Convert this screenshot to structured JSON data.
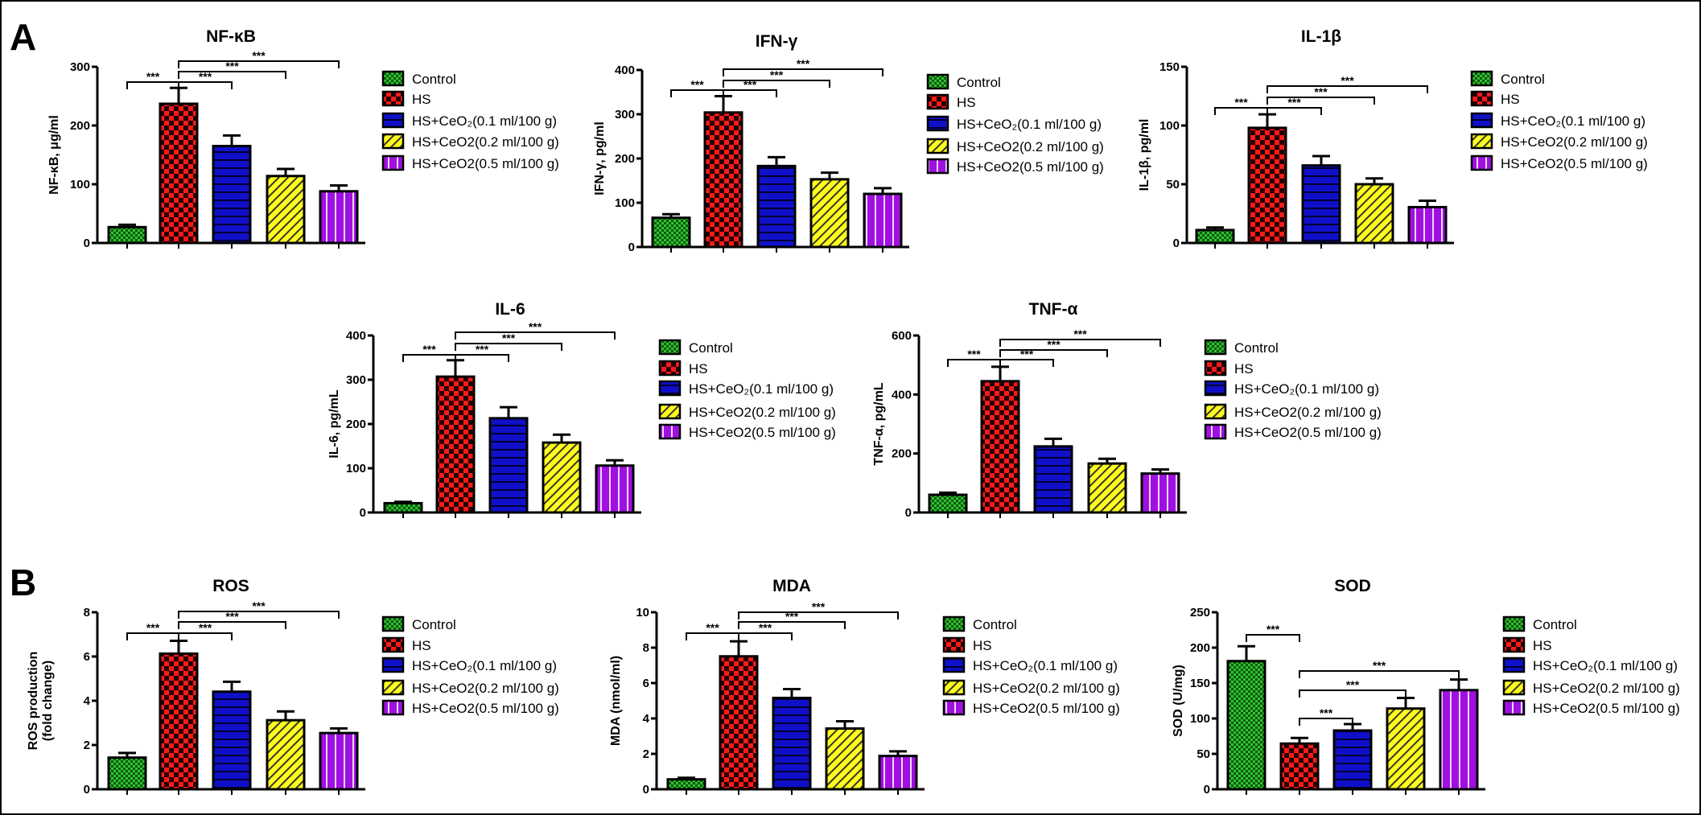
{
  "panels": {
    "a": "A",
    "b": "B"
  },
  "groups": [
    "Control",
    "HS",
    "HS+CeO₂(0.1 ml/100 g)",
    "HS+CeO2(0.2 ml/100 g)",
    "HS+CeO2(0.5 ml/100 g)"
  ],
  "group_colors": [
    "#1fa01f",
    "#ff1a1a",
    "#1010c8",
    "#ffff1a",
    "#a010e0"
  ],
  "group_patterns": [
    "checker-small",
    "checker-large",
    "horizontal-lines",
    "diagonal-lines",
    "vertical-lines"
  ],
  "chart_data": [
    {
      "type": "bar",
      "title": "NF-κB",
      "ylabel": "NF-κB, μg/ml",
      "ylim": [
        0,
        300
      ],
      "yticks": [
        "0",
        "100",
        "200",
        "300"
      ],
      "categories": [
        "Control",
        "HS",
        "HS+CeO₂(0.1 ml/100 g)",
        "HS+CeO2(0.2 ml/100 g)",
        "HS+CeO2(0.5 ml/100 g)"
      ],
      "values": [
        27,
        237,
        165,
        114,
        88
      ],
      "errors": [
        4,
        27,
        18,
        12,
        10
      ],
      "significance": [
        {
          "pair": [
            0,
            1
          ],
          "label": "***"
        },
        {
          "pair": [
            1,
            2
          ],
          "label": "***"
        },
        {
          "pair": [
            1,
            3
          ],
          "label": "***"
        },
        {
          "pair": [
            1,
            4
          ],
          "label": "***"
        }
      ],
      "legend": "right"
    },
    {
      "type": "bar",
      "title": "IFN-γ",
      "ylabel": "IFN-γ, pg/ml",
      "ylim": [
        0,
        400
      ],
      "yticks": [
        "0",
        "100",
        "200",
        "300",
        "400"
      ],
      "categories": [
        "Control",
        "HS",
        "HS+CeO₂(0.1 ml/100 g)",
        "HS+CeO2(0.2 ml/100 g)",
        "HS+CeO2(0.5 ml/100 g)"
      ],
      "values": [
        66,
        304,
        183,
        153,
        120
      ],
      "errors": [
        8,
        37,
        20,
        15,
        13
      ],
      "significance": [
        {
          "pair": [
            0,
            1
          ],
          "label": "***"
        },
        {
          "pair": [
            1,
            2
          ],
          "label": "***"
        },
        {
          "pair": [
            1,
            3
          ],
          "label": "***"
        },
        {
          "pair": [
            1,
            4
          ],
          "label": "***"
        }
      ],
      "legend": "right"
    },
    {
      "type": "bar",
      "title": "IL-1β",
      "ylabel": "IL-1β, pg/ml",
      "ylim": [
        0,
        150
      ],
      "yticks": [
        "0",
        "50",
        "100",
        "150"
      ],
      "categories": [
        "Control",
        "HS",
        "HS+CeO₂(0.1 ml/100 g)",
        "HS+CeO2(0.2 ml/100 g)",
        "HS+CeO2(0.5 ml/100 g)"
      ],
      "values": [
        11,
        98,
        66,
        50,
        30.5
      ],
      "errors": [
        2.2,
        11.5,
        8,
        5,
        5.5
      ],
      "significance": [
        {
          "pair": [
            0,
            1
          ],
          "label": "***"
        },
        {
          "pair": [
            1,
            2
          ],
          "label": "***"
        },
        {
          "pair": [
            1,
            3
          ],
          "label": "***"
        },
        {
          "pair": [
            1,
            4
          ],
          "label": "***"
        }
      ],
      "legend": "right"
    },
    {
      "type": "bar",
      "title": "IL-6",
      "ylabel": "IL-6, pg/mL",
      "ylim": [
        0,
        400
      ],
      "yticks": [
        "0",
        "100",
        "200",
        "300",
        "400"
      ],
      "categories": [
        "Control",
        "HS",
        "HS+CeO₂(0.1 ml/100 g)",
        "HS+CeO2(0.2 ml/100 g)",
        "HS+CeO2(0.5 ml/100 g)"
      ],
      "values": [
        21,
        307,
        213,
        158,
        106
      ],
      "errors": [
        3,
        37,
        25,
        18,
        12
      ],
      "significance": [
        {
          "pair": [
            0,
            1
          ],
          "label": "***"
        },
        {
          "pair": [
            1,
            2
          ],
          "label": "***"
        },
        {
          "pair": [
            1,
            3
          ],
          "label": "***"
        },
        {
          "pair": [
            1,
            4
          ],
          "label": "***"
        }
      ],
      "legend": "right"
    },
    {
      "type": "bar",
      "title": "TNF-α",
      "ylabel": "TNF-α, pg/mL",
      "ylim": [
        0,
        600
      ],
      "yticks": [
        "0",
        "200",
        "400",
        "600"
      ],
      "categories": [
        "Control",
        "HS",
        "HS+CeO₂(0.1 ml/100 g)",
        "HS+CeO2(0.2 ml/100 g)",
        "HS+CeO2(0.5 ml/100 g)"
      ],
      "values": [
        60,
        445,
        224,
        166,
        132
      ],
      "errors": [
        7,
        49,
        26,
        16,
        14
      ],
      "significance": [
        {
          "pair": [
            0,
            1
          ],
          "label": "***"
        },
        {
          "pair": [
            1,
            2
          ],
          "label": "***"
        },
        {
          "pair": [
            1,
            3
          ],
          "label": "***"
        },
        {
          "pair": [
            1,
            4
          ],
          "label": "***"
        }
      ],
      "legend": "right"
    },
    {
      "type": "bar",
      "title": "ROS",
      "ylabel": "ROS production",
      "ylabel2": "(fold change)",
      "ylim": [
        0,
        8
      ],
      "yticks": [
        "0",
        "2",
        "4",
        "6",
        "8"
      ],
      "categories": [
        "Control",
        "HS",
        "HS+CeO₂(0.1 ml/100 g)",
        "HS+CeO2(0.2 ml/100 g)",
        "HS+CeO2(0.5 ml/100 g)"
      ],
      "values": [
        1.43,
        6.13,
        4.41,
        3.12,
        2.54
      ],
      "errors": [
        0.21,
        0.58,
        0.45,
        0.4,
        0.21
      ],
      "significance": [
        {
          "pair": [
            0,
            1
          ],
          "label": "***"
        },
        {
          "pair": [
            1,
            2
          ],
          "label": "***"
        },
        {
          "pair": [
            1,
            3
          ],
          "label": "***"
        },
        {
          "pair": [
            1,
            4
          ],
          "label": "***"
        }
      ],
      "legend": "right"
    },
    {
      "type": "bar",
      "title": "MDA",
      "ylabel": "MDA (nmol/ml)",
      "ylim": [
        0,
        10
      ],
      "yticks": [
        "0",
        "2",
        "4",
        "6",
        "8",
        "10"
      ],
      "categories": [
        "Control",
        "HS",
        "HS+CeO₂(0.1 ml/100 g)",
        "HS+CeO2(0.2 ml/100 g)",
        "HS+CeO2(0.5 ml/100 g)"
      ],
      "values": [
        0.56,
        7.51,
        5.16,
        3.43,
        1.88
      ],
      "errors": [
        0.09,
        0.85,
        0.5,
        0.41,
        0.26
      ],
      "significance": [
        {
          "pair": [
            0,
            1
          ],
          "label": "***"
        },
        {
          "pair": [
            1,
            2
          ],
          "label": "***"
        },
        {
          "pair": [
            1,
            3
          ],
          "label": "***"
        },
        {
          "pair": [
            1,
            4
          ],
          "label": "***"
        }
      ],
      "legend": "right"
    },
    {
      "type": "bar",
      "title": "SOD",
      "ylabel": "SOD (U/mg)",
      "ylim": [
        0,
        250
      ],
      "yticks": [
        "0",
        "50",
        "100",
        "150",
        "200",
        "250"
      ],
      "categories": [
        "Control",
        "HS",
        "HS+CeO₂(0.1 ml/100 g)",
        "HS+CeO2(0.2 ml/100 g)",
        "HS+CeO2(0.5 ml/100 g)"
      ],
      "values": [
        181,
        64.5,
        83,
        114,
        140
      ],
      "errors": [
        21,
        8,
        9,
        15,
        15
      ],
      "significance": [
        {
          "pair": [
            0,
            1
          ],
          "label": "***"
        },
        {
          "pair": [
            1,
            2
          ],
          "label": "***"
        },
        {
          "pair": [
            1,
            3
          ],
          "label": "***"
        },
        {
          "pair": [
            1,
            4
          ],
          "label": "***"
        }
      ],
      "legend": "right"
    }
  ]
}
